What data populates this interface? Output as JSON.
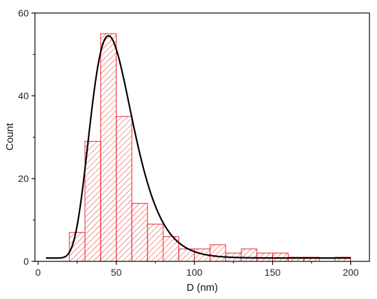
{
  "chart_data": {
    "type": "bar",
    "xlabel": "D (nm)",
    "ylabel": "Count",
    "xlim": [
      -2,
      212
    ],
    "ylim": [
      0,
      60
    ],
    "x_ticks": [
      0,
      50,
      100,
      150,
      200
    ],
    "y_ticks": [
      0,
      20,
      40,
      60
    ],
    "x_tick_labels": [
      "0",
      "50",
      "100",
      "150",
      "200"
    ],
    "y_tick_labels": [
      "0",
      "20",
      "40",
      "60"
    ],
    "bin_width": 10,
    "bins": [
      {
        "start": 20,
        "end": 30,
        "count": 7
      },
      {
        "start": 30,
        "end": 40,
        "count": 29
      },
      {
        "start": 40,
        "end": 50,
        "count": 55
      },
      {
        "start": 50,
        "end": 60,
        "count": 35
      },
      {
        "start": 60,
        "end": 70,
        "count": 14
      },
      {
        "start": 70,
        "end": 80,
        "count": 9
      },
      {
        "start": 80,
        "end": 90,
        "count": 6
      },
      {
        "start": 90,
        "end": 100,
        "count": 3
      },
      {
        "start": 100,
        "end": 110,
        "count": 3
      },
      {
        "start": 110,
        "end": 120,
        "count": 4
      },
      {
        "start": 120,
        "end": 130,
        "count": 2
      },
      {
        "start": 130,
        "end": 140,
        "count": 3
      },
      {
        "start": 140,
        "end": 150,
        "count": 2
      },
      {
        "start": 150,
        "end": 160,
        "count": 2
      },
      {
        "start": 160,
        "end": 170,
        "count": 1
      },
      {
        "start": 170,
        "end": 180,
        "count": 1
      },
      {
        "start": 190,
        "end": 200,
        "count": 1
      }
    ],
    "fit_curve": {
      "type": "lognormal",
      "baseline": 0.8,
      "peak_x": 45,
      "peak_y": 54.5,
      "x_range": [
        5,
        200
      ]
    },
    "colors": {
      "bar_edge": "#e8262a",
      "hatch": "#e8262a",
      "fit": "#000000",
      "axis": "#000000"
    },
    "grid": false,
    "legend": "none"
  }
}
